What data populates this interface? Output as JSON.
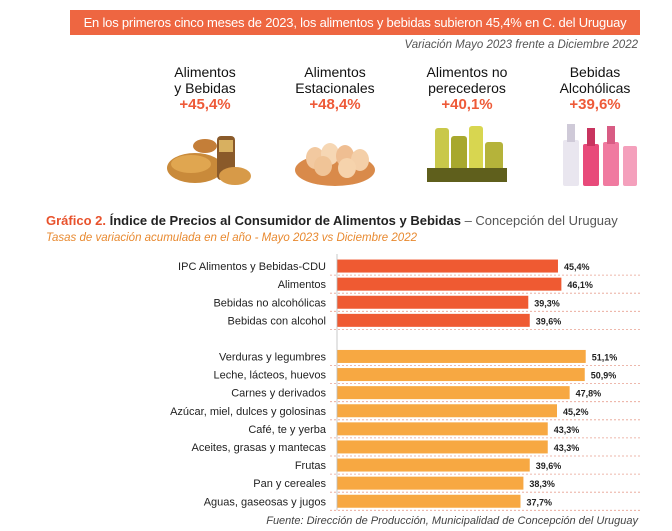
{
  "header": {
    "banner": "En los primeros cinco meses de 2023, los alimentos y bebidas subieron 45,4% en C. del Uruguay",
    "subtitle": "Variación Mayo 2023 frente a Diciembre 2022"
  },
  "cards": [
    {
      "label": "Alimentos\ny Bebidas",
      "value": "+45,4%",
      "icon": "chicken-bread-icon"
    },
    {
      "label": "Alimentos\nEstacionales",
      "value": "+48,4%",
      "icon": "eggs-basket-icon"
    },
    {
      "label": "Alimentos no\nperecederos",
      "value": "+40,1%",
      "icon": "oil-cans-icon"
    },
    {
      "label": "Bebidas\nAlcohólicas",
      "value": "+39,6%",
      "icon": "bottles-icon"
    }
  ],
  "graph": {
    "prefix": "Gráfico 2.",
    "title": "Índice de Precios al Consumidor de Alimentos y Bebidas",
    "dash": "– Concepción del Uruguay",
    "subtitle": "Tasas de variación acumulada en el año - Mayo 2023 vs Diciembre 2022"
  },
  "source": "Fuente: Dirección de Producción, Municipalidad de Concepción del Uruguay",
  "chart_data": {
    "type": "bar",
    "orientation": "horizontal",
    "colors": {
      "group1": "#ef5a32",
      "group2": "#f7a842",
      "separator": "#e8a090"
    },
    "groups": [
      {
        "categories": [
          "IPC Alimentos y Bebidas-CDU",
          "Alimentos",
          "Bebidas no alcohólicas",
          "Bebidas con alcohol"
        ],
        "values": [
          45.4,
          46.1,
          39.3,
          39.6
        ],
        "labels": [
          "45,4%",
          "46,1%",
          "39,3%",
          "39,6%"
        ]
      },
      {
        "categories": [
          "Verduras y legumbres",
          "Leche, lácteos, huevos",
          "Carnes y derivados",
          "Azúcar, miel, dulces y golosinas",
          "Café, te y yerba",
          "Aceites, grasas y mantecas",
          "Frutas",
          "Pan y cereales",
          "Aguas, gaseosas y jugos"
        ],
        "values": [
          51.1,
          50.9,
          47.8,
          45.2,
          43.3,
          43.3,
          39.6,
          38.3,
          37.7
        ],
        "labels": [
          "51,1%",
          "50,9%",
          "47,8%",
          "45,2%",
          "43,3%",
          "43,3%",
          "39,6%",
          "38,3%",
          "37,7%"
        ]
      }
    ]
  }
}
